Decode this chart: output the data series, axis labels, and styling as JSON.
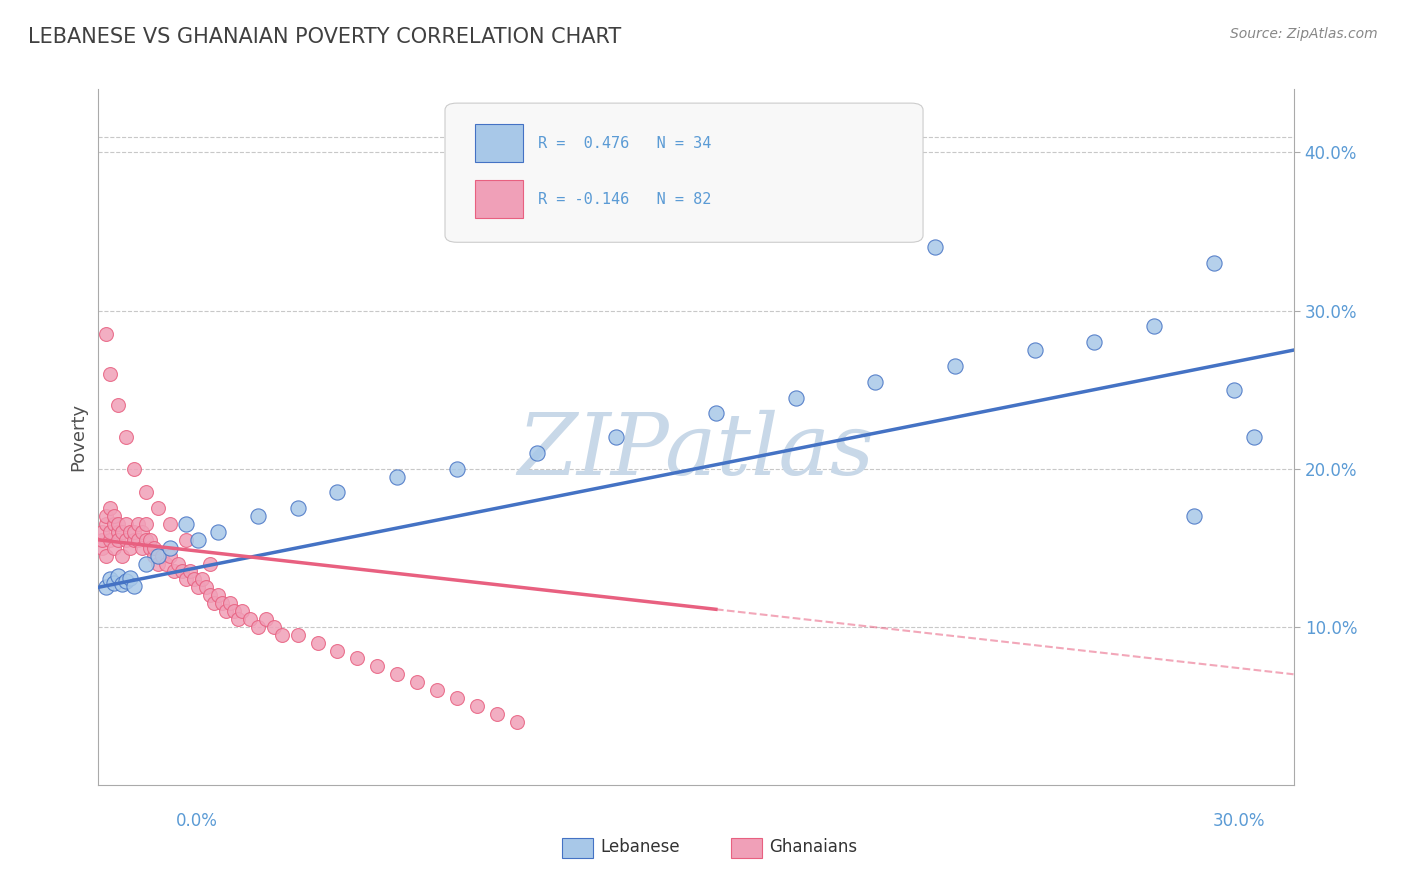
{
  "title": "LEBANESE VS GHANAIAN POVERTY CORRELATION CHART",
  "source": "Source: ZipAtlas.com",
  "ylabel": "Poverty",
  "ytick_vals": [
    0.1,
    0.2,
    0.3,
    0.4
  ],
  "ytick_labels": [
    "10.0%",
    "20.0%",
    "30.0%",
    "40.0%"
  ],
  "xmin": 0.0,
  "xmax": 0.3,
  "ymin": 0.0,
  "ymax": 0.44,
  "R_lebanese": 0.476,
  "N_lebanese": 34,
  "R_ghanaian": -0.146,
  "N_ghanaian": 82,
  "blue_color": "#A8C8E8",
  "pink_color": "#F0A0B8",
  "blue_line_color": "#4472C4",
  "pink_line_color": "#E86080",
  "pink_dash_color": "#F0A0B8",
  "watermark_color": "#C8D8E8",
  "title_color": "#404040",
  "axis_color": "#5B9BD5",
  "grid_color": "#C8C8C8",
  "leb_x": [
    0.002,
    0.003,
    0.004,
    0.005,
    0.006,
    0.007,
    0.008,
    0.009,
    0.012,
    0.015,
    0.018,
    0.022,
    0.025,
    0.03,
    0.04,
    0.05,
    0.06,
    0.075,
    0.09,
    0.11,
    0.13,
    0.155,
    0.175,
    0.195,
    0.215,
    0.235,
    0.25,
    0.265,
    0.175,
    0.21,
    0.28,
    0.29,
    0.285,
    0.275
  ],
  "leb_y": [
    0.125,
    0.13,
    0.128,
    0.132,
    0.127,
    0.129,
    0.131,
    0.126,
    0.14,
    0.145,
    0.15,
    0.165,
    0.155,
    0.16,
    0.17,
    0.175,
    0.185,
    0.195,
    0.2,
    0.21,
    0.22,
    0.235,
    0.245,
    0.255,
    0.265,
    0.275,
    0.28,
    0.29,
    0.38,
    0.34,
    0.33,
    0.22,
    0.25,
    0.17
  ],
  "gha_x": [
    0.001,
    0.001,
    0.001,
    0.002,
    0.002,
    0.002,
    0.003,
    0.003,
    0.003,
    0.004,
    0.004,
    0.004,
    0.005,
    0.005,
    0.005,
    0.006,
    0.006,
    0.007,
    0.007,
    0.008,
    0.008,
    0.009,
    0.009,
    0.01,
    0.01,
    0.011,
    0.011,
    0.012,
    0.012,
    0.013,
    0.013,
    0.014,
    0.014,
    0.015,
    0.016,
    0.017,
    0.018,
    0.019,
    0.02,
    0.021,
    0.022,
    0.023,
    0.024,
    0.025,
    0.026,
    0.027,
    0.028,
    0.029,
    0.03,
    0.031,
    0.032,
    0.033,
    0.034,
    0.035,
    0.036,
    0.038,
    0.04,
    0.042,
    0.044,
    0.046,
    0.05,
    0.055,
    0.06,
    0.065,
    0.07,
    0.075,
    0.08,
    0.085,
    0.09,
    0.095,
    0.1,
    0.105,
    0.002,
    0.003,
    0.005,
    0.007,
    0.009,
    0.012,
    0.015,
    0.018,
    0.022,
    0.028
  ],
  "gha_y": [
    0.15,
    0.155,
    0.16,
    0.145,
    0.165,
    0.17,
    0.155,
    0.16,
    0.175,
    0.15,
    0.165,
    0.17,
    0.16,
    0.155,
    0.165,
    0.145,
    0.16,
    0.165,
    0.155,
    0.16,
    0.15,
    0.155,
    0.16,
    0.165,
    0.155,
    0.15,
    0.16,
    0.155,
    0.165,
    0.15,
    0.155,
    0.145,
    0.15,
    0.14,
    0.145,
    0.14,
    0.145,
    0.135,
    0.14,
    0.135,
    0.13,
    0.135,
    0.13,
    0.125,
    0.13,
    0.125,
    0.12,
    0.115,
    0.12,
    0.115,
    0.11,
    0.115,
    0.11,
    0.105,
    0.11,
    0.105,
    0.1,
    0.105,
    0.1,
    0.095,
    0.095,
    0.09,
    0.085,
    0.08,
    0.075,
    0.07,
    0.065,
    0.06,
    0.055,
    0.05,
    0.045,
    0.04,
    0.285,
    0.26,
    0.24,
    0.22,
    0.2,
    0.185,
    0.175,
    0.165,
    0.155,
    0.14
  ]
}
